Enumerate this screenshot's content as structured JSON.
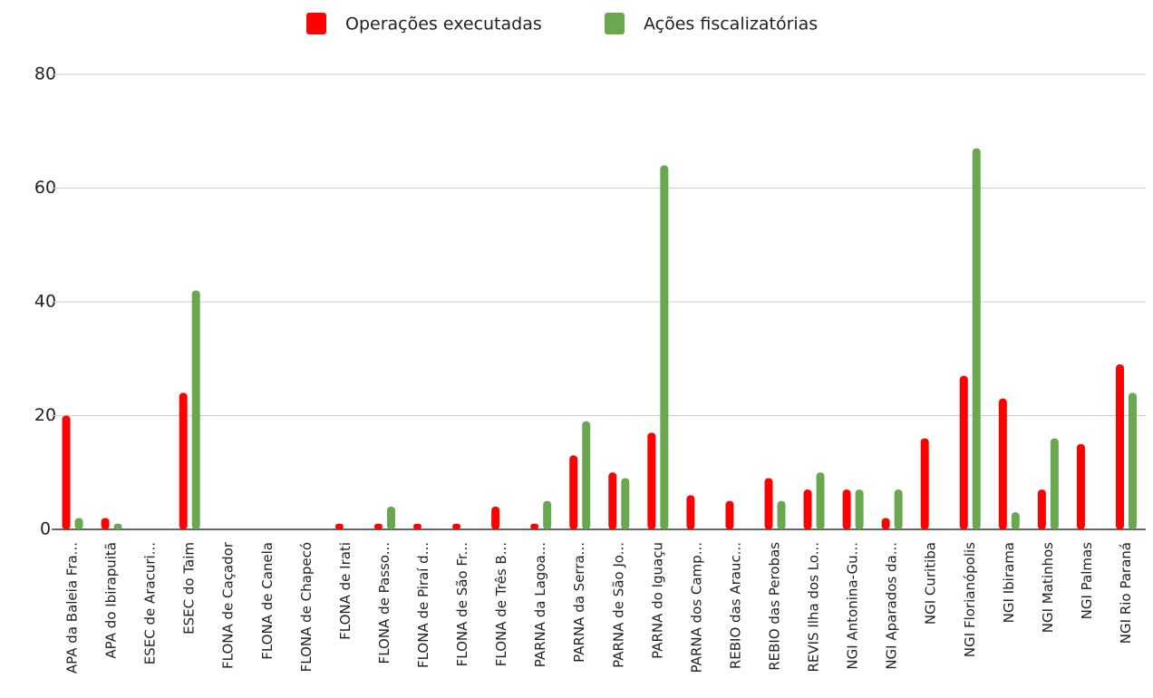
{
  "chart_data": {
    "type": "bar",
    "categories": [
      "APA da Baleia Fra...",
      "APA do Ibirapuitã",
      "ESEC de Aracuri...",
      "ESEC do Taim",
      "FLONA de Caçador",
      "FLONA de Canela",
      "FLONA de Chapecó",
      "FLONA de Irati",
      "FLONA de Passo...",
      "FLONA de Piraí d...",
      "FLONA de São Fr...",
      "FLONA de Três B...",
      "PARNA da Lagoa...",
      "PARNA da Serra...",
      "PARNA de São Jo...",
      "PARNA do Iguaçu",
      "PARNA dos Camp...",
      "REBIO das Arauc...",
      "REBIO das Perobas",
      "REVIS Ilha dos Lo...",
      "NGI Antonina-Gu...",
      "NGI Aparados da...",
      "NGI Curitiba",
      "NGI Florianópolis",
      "NGI Ibirama",
      "NGI Matinhos",
      "NGI Palmas",
      "NGI Rio Paraná"
    ],
    "series": [
      {
        "name": "Operações executadas",
        "color": "#ff0000",
        "values": [
          20,
          2,
          0,
          24,
          0,
          0,
          0,
          1,
          1,
          1,
          1,
          4,
          1,
          13,
          10,
          17,
          6,
          5,
          9,
          7,
          7,
          2,
          16,
          27,
          23,
          7,
          15,
          29
        ]
      },
      {
        "name": "Ações fiscalizatórias",
        "color": "#6aa84f",
        "values": [
          2,
          1,
          0,
          42,
          0,
          0,
          0,
          0,
          4,
          0,
          0,
          0,
          5,
          19,
          9,
          64,
          0,
          0,
          5,
          10,
          7,
          7,
          0,
          67,
          3,
          16,
          0,
          24
        ]
      }
    ],
    "ylim": [
      0,
      80
    ],
    "yticks": [
      0,
      20,
      40,
      60,
      80
    ],
    "grid": true,
    "legend": "top"
  }
}
